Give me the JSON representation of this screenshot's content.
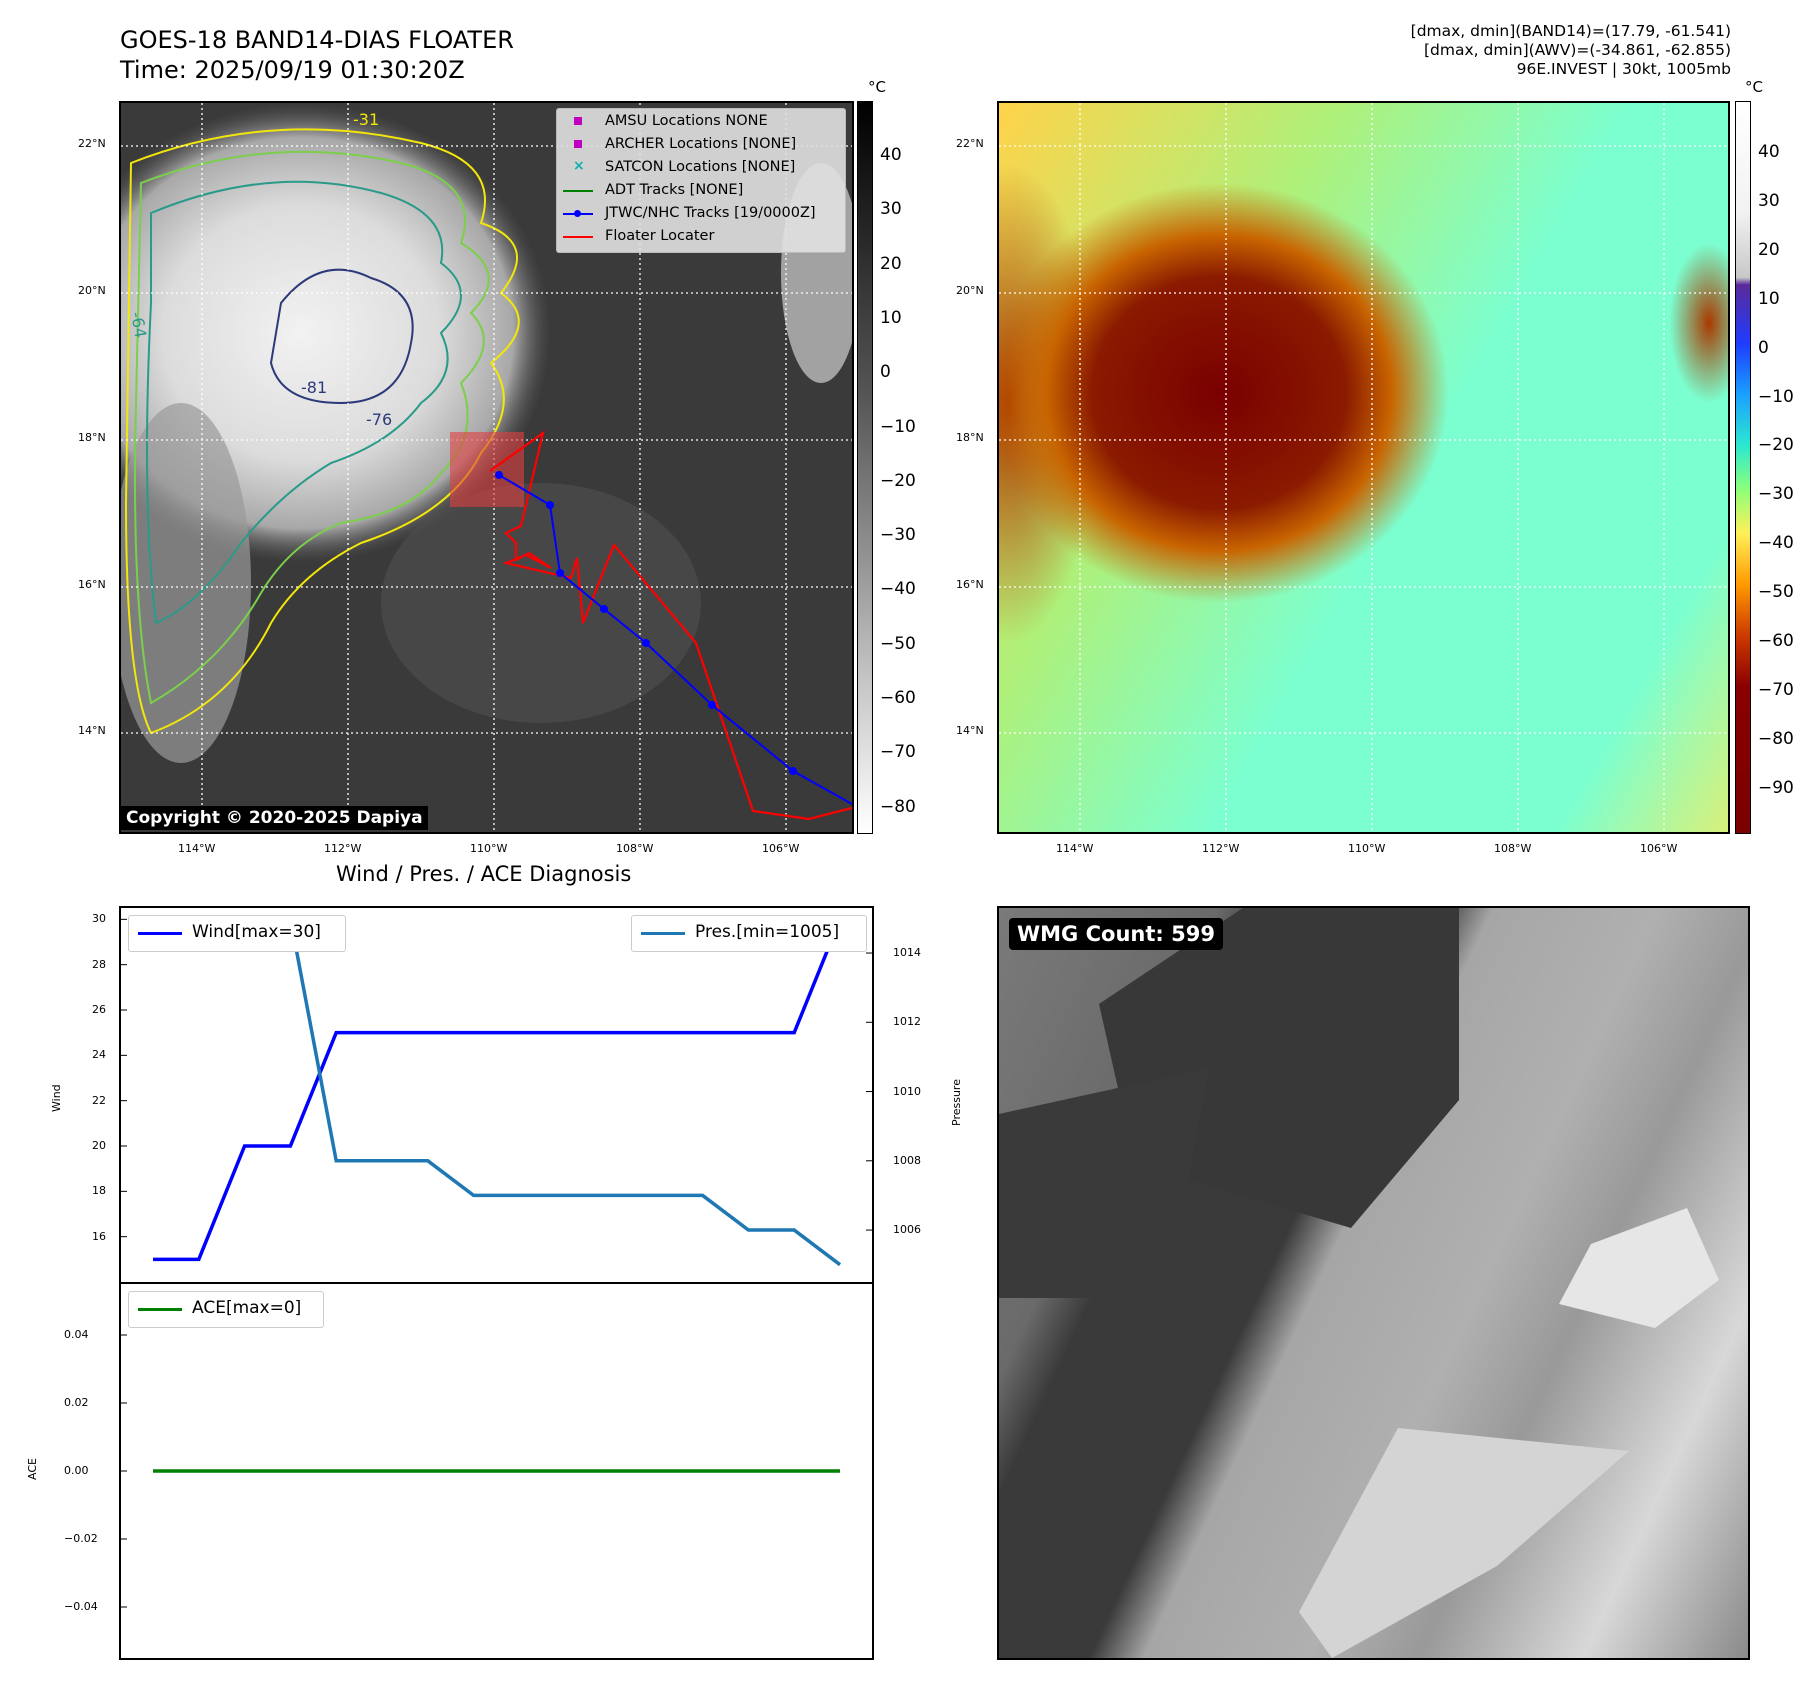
{
  "header": {
    "title_line1": "GOES-18 BAND14-DIAS FLOATER",
    "title_line2": "Time: 2025/09/19 01:30:20Z",
    "info_line1": "[dmax, dmin](BAND14)=(17.79, -61.541)",
    "info_line2": "[dmax, dmin](AWV)=(-34.861, -62.855)",
    "info_line3": "96E.INVEST | 30kt, 1005mb"
  },
  "map_axes": {
    "lat_labels": [
      "22°N",
      "20°N",
      "18°N",
      "16°N",
      "14°N"
    ],
    "lon_labels": [
      "114°W",
      "112°W",
      "110°W",
      "108°W",
      "106°W"
    ]
  },
  "ir_panel": {
    "copyright": "Copyright © 2020-2025 Dapiya",
    "unit": "°C",
    "colorbar_ticks": [
      "40",
      "30",
      "20",
      "10",
      "0",
      "−10",
      "−20",
      "−30",
      "−40",
      "−50",
      "−60",
      "−70",
      "−80"
    ],
    "contour_labels": [
      "-81",
      "-76",
      "-64",
      "-31"
    ],
    "legend": [
      {
        "label": "AMSU Locations NONE",
        "color": "#c000c0",
        "marker": "square"
      },
      {
        "label": "ARCHER Locations [NONE]",
        "color": "#c000c0",
        "marker": "square"
      },
      {
        "label": "SATCON Locations [NONE]",
        "color": "#10b0b0",
        "marker": "x"
      },
      {
        "label": "ADT Tracks [NONE]",
        "color": "#008000",
        "marker": "line"
      },
      {
        "label": "JTWC/NHC Tracks [19/0000Z]",
        "color": "#0000ff",
        "marker": "line-dot"
      },
      {
        "label": "Floater Locater",
        "color": "#ff0000",
        "marker": "line"
      }
    ]
  },
  "wv_panel": {
    "unit": "°C",
    "colorbar_ticks": [
      "40",
      "30",
      "20",
      "10",
      "0",
      "−10",
      "−20",
      "−30",
      "−40",
      "−50",
      "−60",
      "−70",
      "−80",
      "−90"
    ]
  },
  "diagnosis": {
    "title": "Wind / Pres. / ACE Diagnosis",
    "wind_ylabel": "Wind",
    "pres_ylabel": "Pressure",
    "ace_ylabel": "ACE",
    "wind_legend": "Wind[max=30]",
    "pres_legend": "Pres.[min=1005]",
    "ace_legend": "ACE[max=0]",
    "wind_ticks": [
      "30",
      "28",
      "26",
      "24",
      "22",
      "20",
      "18",
      "16"
    ],
    "pres_ticks": [
      "1014",
      "1012",
      "1010",
      "1008",
      "1006"
    ],
    "ace_ticks": [
      "0.04",
      "0.02",
      "0.00",
      "−0.02",
      "−0.04"
    ]
  },
  "wmg_panel": {
    "label": "WMG Count: 599"
  },
  "chart_data": [
    {
      "type": "line",
      "title": "Wind / Pres. / ACE Diagnosis",
      "x": [
        0,
        1,
        2,
        3,
        4,
        5,
        6,
        7,
        8,
        9,
        10,
        11,
        12,
        13,
        14,
        15
      ],
      "series": [
        {
          "name": "Wind[max=30]",
          "color": "#0000ff",
          "axis": "left",
          "values": [
            15,
            15,
            20,
            20,
            25,
            25,
            25,
            25,
            25,
            25,
            25,
            25,
            25,
            25,
            25,
            30
          ]
        },
        {
          "name": "Pres.[min=1005]",
          "color": "#1f77b4",
          "axis": "right",
          "values": [
            1015,
            1015,
            1015,
            1015,
            1008,
            1008,
            1008,
            1007,
            1007,
            1007,
            1007,
            1007,
            1007,
            1006,
            1006,
            1005
          ]
        }
      ],
      "ylabel": "Wind",
      "y2label": "Pressure",
      "ylim": [
        14.0,
        30.5
      ],
      "y2lim": [
        1004.5,
        1015.3
      ]
    },
    {
      "type": "line",
      "x": [
        0,
        1,
        2,
        3,
        4,
        5,
        6,
        7,
        8,
        9,
        10,
        11,
        12,
        13,
        14,
        15
      ],
      "series": [
        {
          "name": "ACE[max=0]",
          "color": "#008000",
          "values": [
            0,
            0,
            0,
            0,
            0,
            0,
            0,
            0,
            0,
            0,
            0,
            0,
            0,
            0,
            0,
            0
          ]
        }
      ],
      "ylabel": "ACE",
      "ylim": [
        -0.055,
        0.055
      ]
    }
  ]
}
